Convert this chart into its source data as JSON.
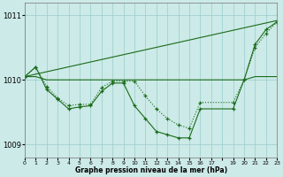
{
  "title": "Graphe pression niveau de la mer (hPa)",
  "bg_color": "#cceae7",
  "grid_color": "#99cccc",
  "line_color": "#1a6b1a",
  "ylim": [
    1008.8,
    1011.2
  ],
  "xlim": [
    0,
    23
  ],
  "yticks": [
    1009,
    1010,
    1011
  ],
  "xtick_labels": [
    "0",
    "1",
    "2",
    "3",
    "4",
    "5",
    "6",
    "7",
    "8",
    "9",
    "10",
    "11",
    "12",
    "13",
    "14",
    "15",
    "16",
    "17",
    "",
    "19",
    "20",
    "21",
    "22",
    "23"
  ],
  "series_straight": {
    "x": [
      0,
      23
    ],
    "y": [
      1010.05,
      1010.92
    ]
  },
  "series_flat": {
    "x": [
      0,
      1,
      2,
      3,
      4,
      5,
      6,
      7,
      8,
      9,
      10,
      11,
      12,
      13,
      14,
      15,
      16,
      17,
      19,
      20,
      21,
      22,
      23
    ],
    "y": [
      1010.05,
      1010.05,
      1010.0,
      1010.0,
      1010.0,
      1010.0,
      1010.0,
      1010.0,
      1010.0,
      1010.0,
      1010.0,
      1010.0,
      1010.0,
      1010.0,
      1010.0,
      1010.0,
      1010.0,
      1010.0,
      1010.0,
      1010.0,
      1010.05,
      1010.05,
      1010.05
    ]
  },
  "series_solid": {
    "x": [
      0,
      1,
      2,
      3,
      4,
      5,
      6,
      7,
      8,
      9,
      10,
      11,
      12,
      13,
      14,
      15,
      16,
      19,
      20,
      21,
      22,
      23
    ],
    "y": [
      1010.05,
      1010.2,
      1009.85,
      1009.7,
      1009.55,
      1009.58,
      1009.6,
      1009.82,
      1009.95,
      1009.95,
      1009.6,
      1009.4,
      1009.2,
      1009.15,
      1009.1,
      1009.1,
      1009.55,
      1009.55,
      1010.0,
      1010.55,
      1010.78,
      1010.9
    ]
  },
  "series_dotted": {
    "x": [
      0,
      1,
      2,
      3,
      4,
      5,
      6,
      7,
      8,
      9,
      10,
      11,
      12,
      13,
      14,
      15,
      16,
      19,
      20,
      21,
      22,
      23
    ],
    "y": [
      1010.05,
      1010.2,
      1009.9,
      1009.72,
      1009.6,
      1009.62,
      1009.62,
      1009.88,
      1009.98,
      1009.98,
      1009.98,
      1009.75,
      1009.55,
      1009.4,
      1009.3,
      1009.25,
      1009.65,
      1009.65,
      1010.0,
      1010.5,
      1010.72,
      1010.9
    ]
  }
}
